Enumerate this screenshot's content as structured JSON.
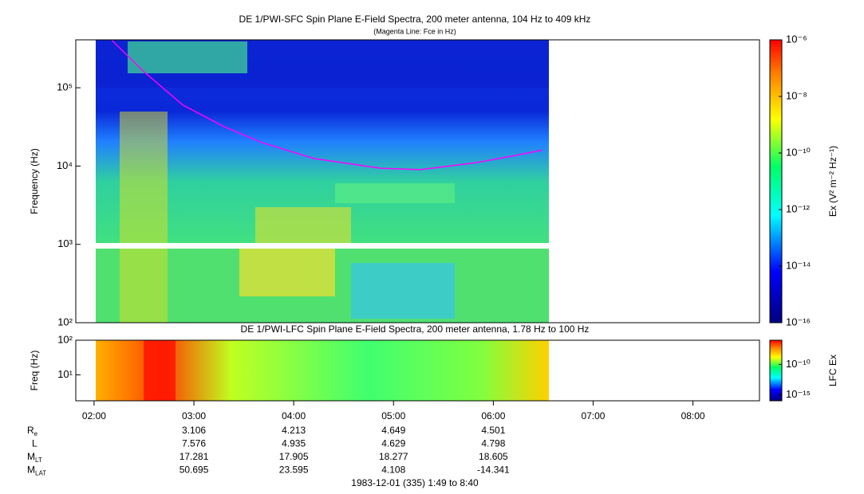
{
  "chart_data": [
    {
      "type": "spectrogram",
      "title": "DE 1/PWI-SFC  Spin Plane E-Field Spectra, 200 meter antenna, 104 Hz to 409 kHz",
      "subtitle": "(Magenta Line: Fce in Hz)",
      "ylabel": "Frequency (Hz)",
      "log_y": true,
      "xlim": [
        1.8167,
        8.6667
      ],
      "ylim": [
        100,
        409000
      ],
      "yticks": [
        {
          "value": 100,
          "label": "10²"
        },
        {
          "value": 1000,
          "label": "10³"
        },
        {
          "value": 10000,
          "label": "10⁴"
        },
        {
          "value": 100000,
          "label": "10⁵"
        }
      ],
      "series": [
        {
          "color": "#ff00ff",
          "x": [
            2.18,
            2.5,
            2.89,
            3.3,
            3.68,
            4.2,
            4.87,
            5.27,
            5.82,
            6.2,
            6.49
          ],
          "values": [
            400000,
            160000,
            60000,
            32000,
            20000,
            12500,
            9400,
            9000,
            11000,
            13500,
            16000
          ]
        }
      ],
      "colorbar": {
        "label": "Ex (V² m⁻² Hz⁻¹)",
        "log": true,
        "lim": [
          1e-16,
          1e-06
        ],
        "ticks": [
          {
            "value": 1e-16,
            "label": "10⁻¹⁶"
          },
          {
            "value": 1e-14,
            "label": "10⁻¹⁴"
          },
          {
            "value": 1e-12,
            "label": "10⁻¹²"
          },
          {
            "value": 1e-10,
            "label": "10⁻¹⁰"
          },
          {
            "value": 1e-08,
            "label": "10⁻⁸"
          },
          {
            "value": 1e-06,
            "label": "10⁻⁶"
          }
        ]
      }
    },
    {
      "type": "spectrogram",
      "title": "DE 1/PWI-LFC  Spin Plane E-Field Spectra, 200 meter antenna, 1.78 Hz to 100 Hz",
      "ylabel": "Freq (Hz)",
      "log_y": true,
      "xlim": [
        1.8167,
        8.6667
      ],
      "ylim": [
        1.78,
        100
      ],
      "yticks": [
        {
          "value": 10,
          "label": "10¹"
        },
        {
          "value": 100,
          "label": "10²"
        }
      ],
      "xticks": [
        {
          "value": 2,
          "label": "02:00"
        },
        {
          "value": 3,
          "label": "03:00"
        },
        {
          "value": 4,
          "label": "04:00"
        },
        {
          "value": 5,
          "label": "05:00"
        },
        {
          "value": 6,
          "label": "06:00"
        },
        {
          "value": 7,
          "label": "07:00"
        },
        {
          "value": 8,
          "label": "08:00"
        }
      ],
      "colorbar": {
        "label": "LFC Ex",
        "log": true,
        "lim": [
          1e-16,
          1e-06
        ],
        "ticks": [
          {
            "value": 1e-15,
            "label": "10⁻¹⁵"
          },
          {
            "value": 1e-10,
            "label": "10⁻¹⁰"
          }
        ]
      }
    }
  ],
  "ephemeris": {
    "rows": [
      {
        "label": "R",
        "sub": "e",
        "values": [
          "3.106",
          "4.213",
          "4.649",
          "4.501"
        ]
      },
      {
        "label": "L",
        "values": [
          "7.576",
          "4.935",
          "4.629",
          "4.798"
        ]
      },
      {
        "label": "M",
        "sub": "LT",
        "values": [
          "17.281",
          "17.905",
          "18.277",
          "18.605"
        ]
      },
      {
        "label": "M",
        "sub": "LAT",
        "values": [
          "50.695",
          "23.595",
          "4.108",
          "-14.341"
        ]
      }
    ]
  },
  "footer": "1983-12-01 (335) 1:49 to 8:40"
}
